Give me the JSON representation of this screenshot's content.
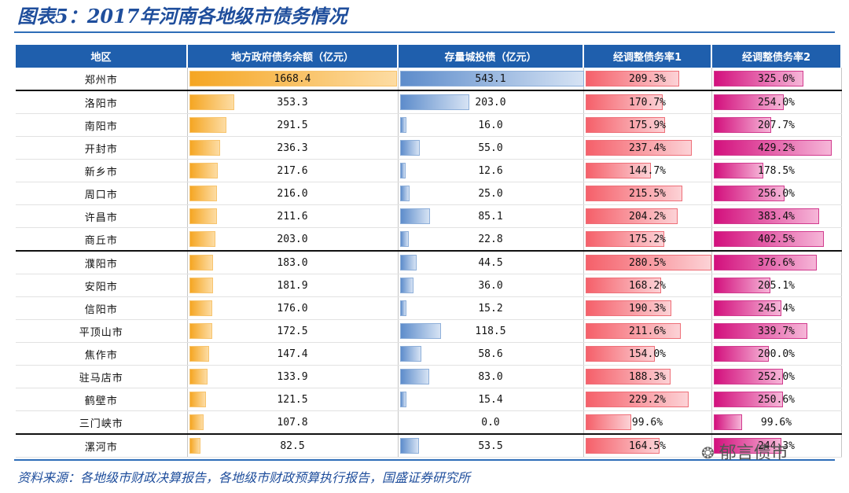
{
  "title": "图表5：2017年河南各地级市债务情况",
  "source": "资料来源：各地级市财政决算报告，各地级市财政预算执行报告，国盛证券研究所",
  "watermark": "郁言债市",
  "colors": {
    "bar1": "#f5a623",
    "bar2": "#5d8ccb",
    "bar3": "#f5606a",
    "bar4": "#d3107d",
    "header": "#1f5fad"
  },
  "table": {
    "headers": [
      "地区",
      "地方政府债务余额（亿元）",
      "存量城投债（亿元）",
      "经调整债务率1",
      "经调整债务率2"
    ],
    "rows": [
      {
        "city": "郑州市",
        "debt": 1668.4,
        "debt_text": "1668.4",
        "bond": 543.1,
        "bond_text": "543.1",
        "r1": 209.3,
        "r1_text": "209.3%",
        "r2": 325.0,
        "r2_text": "325.0%"
      },
      {
        "city": "洛阳市",
        "debt": 353.3,
        "debt_text": "353.3",
        "bond": 203.0,
        "bond_text": "203.0",
        "r1": 170.7,
        "r1_text": "170.7%",
        "r2": 254.0,
        "r2_text": "254.0%"
      },
      {
        "city": "南阳市",
        "debt": 291.5,
        "debt_text": "291.5",
        "bond": 16.0,
        "bond_text": "16.0",
        "r1": 175.9,
        "r1_text": "175.9%",
        "r2": 207.7,
        "r2_text": "207.7%"
      },
      {
        "city": "开封市",
        "debt": 236.3,
        "debt_text": "236.3",
        "bond": 55.0,
        "bond_text": "55.0",
        "r1": 237.4,
        "r1_text": "237.4%",
        "r2": 429.2,
        "r2_text": "429.2%"
      },
      {
        "city": "新乡市",
        "debt": 217.6,
        "debt_text": "217.6",
        "bond": 12.6,
        "bond_text": "12.6",
        "r1": 144.7,
        "r1_text": "144.7%",
        "r2": 178.5,
        "r2_text": "178.5%"
      },
      {
        "city": "周口市",
        "debt": 216.0,
        "debt_text": "216.0",
        "bond": 25.0,
        "bond_text": "25.0",
        "r1": 215.5,
        "r1_text": "215.5%",
        "r2": 256.0,
        "r2_text": "256.0%"
      },
      {
        "city": "许昌市",
        "debt": 211.6,
        "debt_text": "211.6",
        "bond": 85.1,
        "bond_text": "85.1",
        "r1": 204.2,
        "r1_text": "204.2%",
        "r2": 383.4,
        "r2_text": "383.4%"
      },
      {
        "city": "商丘市",
        "debt": 203.0,
        "debt_text": "203.0",
        "bond": 22.8,
        "bond_text": "22.8",
        "r1": 175.2,
        "r1_text": "175.2%",
        "r2": 402.5,
        "r2_text": "402.5%"
      },
      {
        "city": "濮阳市",
        "debt": 183.0,
        "debt_text": "183.0",
        "bond": 44.5,
        "bond_text": "44.5",
        "r1": 280.5,
        "r1_text": "280.5%",
        "r2": 376.6,
        "r2_text": "376.6%"
      },
      {
        "city": "安阳市",
        "debt": 181.9,
        "debt_text": "181.9",
        "bond": 36.0,
        "bond_text": "36.0",
        "r1": 168.2,
        "r1_text": "168.2%",
        "r2": 205.1,
        "r2_text": "205.1%"
      },
      {
        "city": "信阳市",
        "debt": 176.0,
        "debt_text": "176.0",
        "bond": 15.2,
        "bond_text": "15.2",
        "r1": 190.3,
        "r1_text": "190.3%",
        "r2": 245.4,
        "r2_text": "245.4%"
      },
      {
        "city": "平顶山市",
        "debt": 172.5,
        "debt_text": "172.5",
        "bond": 118.5,
        "bond_text": "118.5",
        "r1": 211.6,
        "r1_text": "211.6%",
        "r2": 339.7,
        "r2_text": "339.7%"
      },
      {
        "city": "焦作市",
        "debt": 147.4,
        "debt_text": "147.4",
        "bond": 58.6,
        "bond_text": "58.6",
        "r1": 154.0,
        "r1_text": "154.0%",
        "r2": 200.0,
        "r2_text": "200.0%"
      },
      {
        "city": "驻马店市",
        "debt": 133.9,
        "debt_text": "133.9",
        "bond": 83.0,
        "bond_text": "83.0",
        "r1": 188.3,
        "r1_text": "188.3%",
        "r2": 252.0,
        "r2_text": "252.0%"
      },
      {
        "city": "鹤壁市",
        "debt": 121.5,
        "debt_text": "121.5",
        "bond": 15.4,
        "bond_text": "15.4",
        "r1": 229.2,
        "r1_text": "229.2%",
        "r2": 250.6,
        "r2_text": "250.6%"
      },
      {
        "city": "三门峡市",
        "debt": 107.8,
        "debt_text": "107.8",
        "bond": 0.0,
        "bond_text": "0.0",
        "r1": 99.6,
        "r1_text": "99.6%",
        "r2": 99.6,
        "r2_text": "99.6%"
      },
      {
        "city": "漯河市",
        "debt": 82.5,
        "debt_text": "82.5",
        "bond": 53.5,
        "bond_text": "53.5",
        "r1": 164.5,
        "r1_text": "164.5%",
        "r2": 244.3,
        "r2_text": "244.3%"
      }
    ]
  }
}
